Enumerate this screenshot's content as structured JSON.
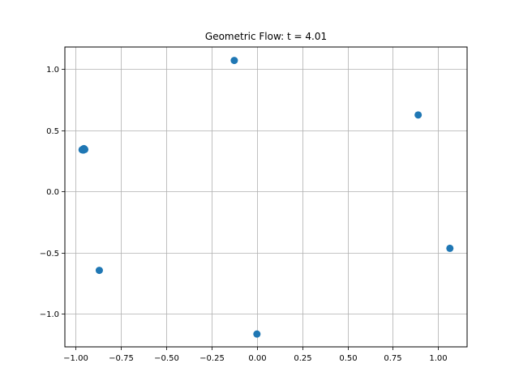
{
  "chart_data": {
    "type": "scatter",
    "title": "Geometric Flow: t = 4.01",
    "xlabel": "",
    "ylabel": "",
    "xlim": [
      -1.06,
      1.16
    ],
    "ylim": [
      -1.27,
      1.18
    ],
    "x_ticks": [
      -1.0,
      -0.75,
      -0.5,
      -0.25,
      0.0,
      0.25,
      0.5,
      0.75,
      1.0
    ],
    "x_tick_labels": [
      "−1.00",
      "−0.75",
      "−0.50",
      "−0.25",
      "0.00",
      "0.25",
      "0.50",
      "0.75",
      "1.00"
    ],
    "y_ticks": [
      -1.0,
      -0.5,
      0.0,
      0.5,
      1.0
    ],
    "y_tick_labels": [
      "−1.0",
      "−0.5",
      "0.0",
      "0.5",
      "1.0"
    ],
    "grid": true,
    "legend": "none",
    "color": "#1f77b4",
    "x": [
      -0.96,
      -0.955,
      -0.965,
      -0.958,
      -0.95,
      -0.87,
      -0.125,
      0.0,
      0.89,
      1.065
    ],
    "y": [
      0.345,
      0.35,
      0.34,
      0.338,
      0.343,
      -0.645,
      1.07,
      -1.165,
      0.625,
      -0.465
    ]
  }
}
